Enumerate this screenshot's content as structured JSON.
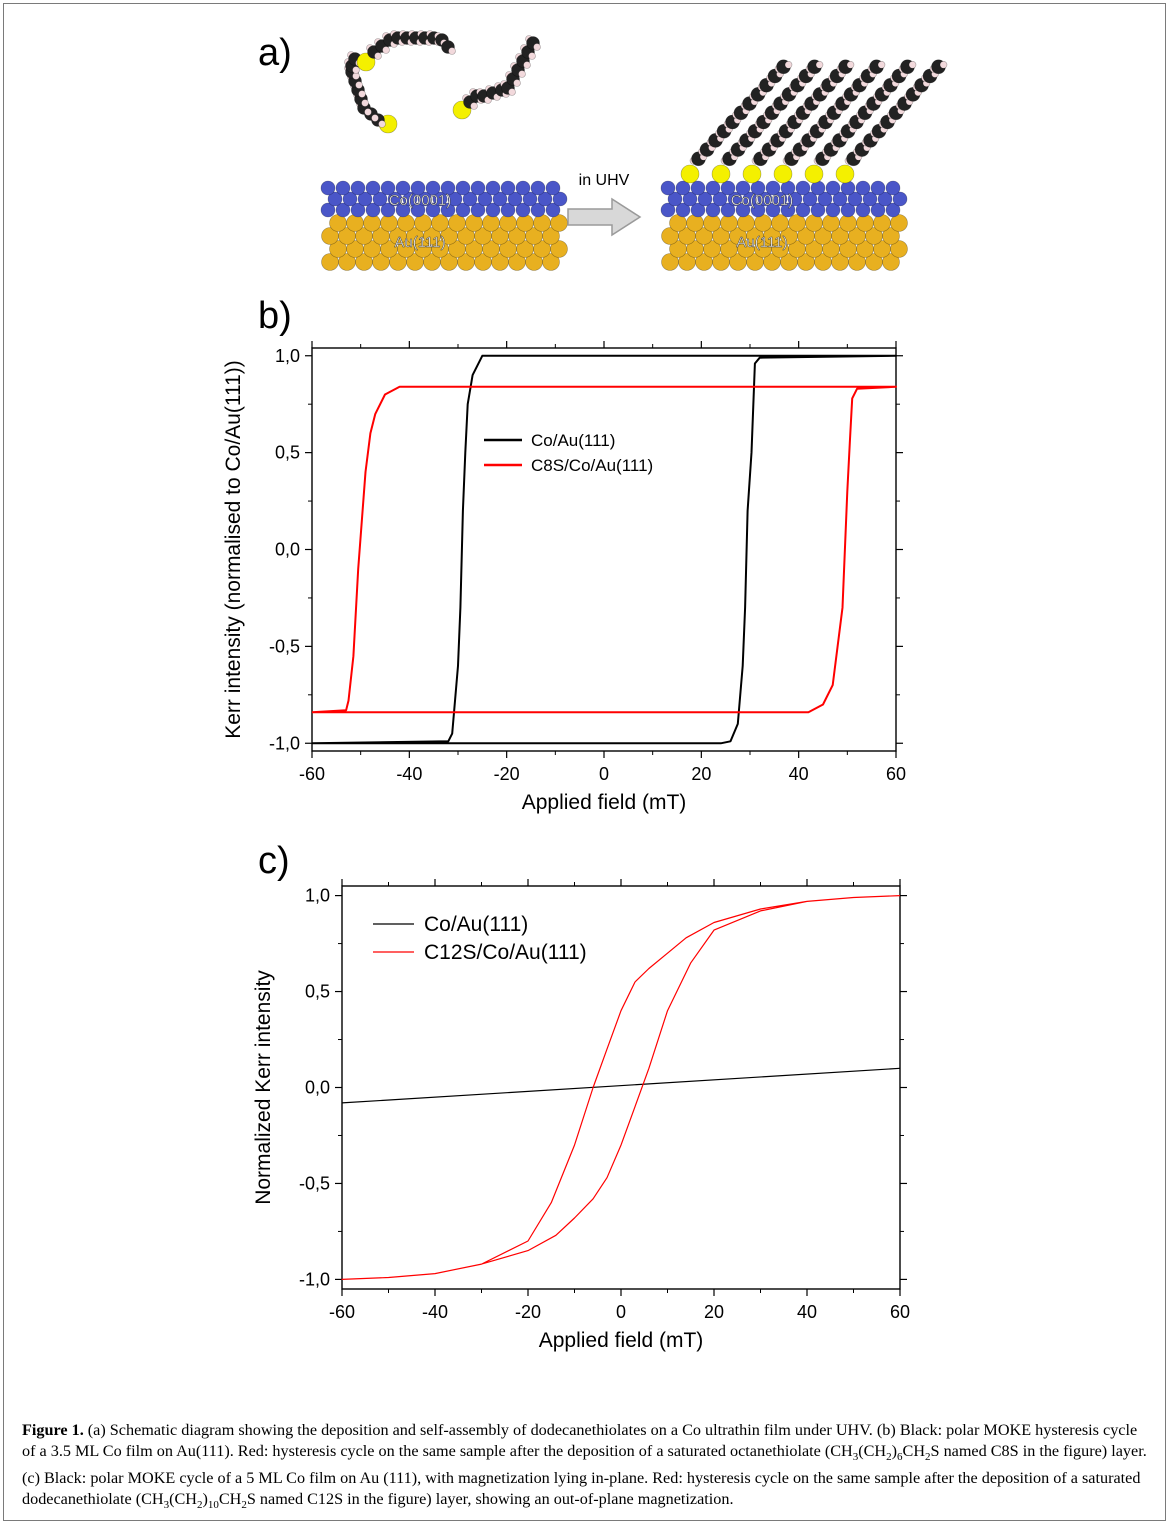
{
  "panel_labels": {
    "a": "a)",
    "b": "b)",
    "c": "c)"
  },
  "schematic": {
    "arrow_label": "in UHV",
    "left_co_label": "Co(0001)",
    "left_au_label": "Au(111)",
    "right_co_label": "Co(0001)",
    "right_au_label": "Au(111)",
    "colors": {
      "carbon": "#222222",
      "hydrogen": "#f2d9dc",
      "sulfur": "#f4f000",
      "cobalt": "#4a56c8",
      "gold": "#e8b020"
    }
  },
  "chart_data": [
    {
      "panel": "b",
      "type": "line",
      "xlabel": "Applied field (mT)",
      "ylabel": "Kerr intensity (normalised to Co/Au(111))",
      "xlim": [
        -60,
        60
      ],
      "ylim": [
        -1.04,
        1.04
      ],
      "xticks": [
        -60,
        -40,
        -20,
        0,
        20,
        40,
        60
      ],
      "yticks": [
        -1.0,
        -0.5,
        0.0,
        0.5,
        1.0
      ],
      "ytick_labels": [
        "-1,0",
        "-0,5",
        "0,0",
        "0,5",
        "1,0"
      ],
      "legend_position": "upper-center",
      "series": [
        {
          "name": "Co/Au(111)",
          "color": "#000000",
          "x": [
            -60,
            -32,
            -31.2,
            -30,
            -29.5,
            -29,
            -28.5,
            -28,
            -27,
            -25,
            60,
            60,
            32,
            31,
            30.3,
            29.5,
            29,
            28.5,
            27.5,
            26,
            24,
            -60
          ],
          "y": [
            -1.0,
            -0.99,
            -0.95,
            -0.6,
            -0.3,
            0.2,
            0.5,
            0.75,
            0.9,
            1.0,
            1.0,
            1.0,
            0.99,
            0.96,
            0.5,
            0.2,
            -0.3,
            -0.6,
            -0.9,
            -0.99,
            -1.0,
            -1.0
          ]
        },
        {
          "name": "C8S/Co/Au(111)",
          "color": "#ff0000",
          "x": [
            -60,
            -53,
            -52.5,
            -51.5,
            -50.5,
            -49,
            -48,
            -47,
            -45,
            -42,
            -40,
            60,
            60,
            52,
            51,
            50.5,
            50,
            49,
            48,
            47,
            45,
            42,
            -60
          ],
          "y": [
            -0.84,
            -0.83,
            -0.78,
            -0.55,
            -0.1,
            0.4,
            0.6,
            0.7,
            0.8,
            0.84,
            0.84,
            0.84,
            0.84,
            0.83,
            0.78,
            0.55,
            0.3,
            -0.3,
            -0.5,
            -0.7,
            -0.8,
            -0.84,
            -0.84
          ]
        }
      ]
    },
    {
      "panel": "c",
      "type": "line",
      "xlabel": "Applied field (mT)",
      "ylabel": "Normalized Kerr intensity",
      "xlim": [
        -60,
        60
      ],
      "ylim": [
        -1.05,
        1.05
      ],
      "xticks": [
        -60,
        -40,
        -20,
        0,
        20,
        40,
        60
      ],
      "yticks": [
        -1.0,
        -0.5,
        0.0,
        0.5,
        1.0
      ],
      "ytick_labels": [
        "-1,0",
        "-0,5",
        "0,0",
        "0,5",
        "1,0"
      ],
      "legend_position": "upper-left",
      "series": [
        {
          "name": "Co/Au(111)",
          "color": "#000000",
          "x": [
            -60,
            60
          ],
          "y": [
            -0.08,
            0.1
          ]
        },
        {
          "name": "C12S/Co/Au(111)",
          "color": "#ff0000",
          "x": [
            60,
            50,
            40,
            30,
            20,
            14,
            10,
            6,
            3,
            0,
            -3,
            -6,
            -10,
            -15,
            -20,
            -30,
            -40,
            -50,
            -60,
            -50,
            -40,
            -30,
            -20,
            -14,
            -10,
            -6,
            -3,
            0,
            3,
            6,
            10,
            15,
            20,
            30,
            40,
            50,
            60
          ],
          "y": [
            1.0,
            0.99,
            0.97,
            0.93,
            0.86,
            0.78,
            0.7,
            0.62,
            0.55,
            0.4,
            0.2,
            0.0,
            -0.3,
            -0.6,
            -0.8,
            -0.92,
            -0.97,
            -0.99,
            -1.0,
            -0.99,
            -0.97,
            -0.92,
            -0.85,
            -0.77,
            -0.68,
            -0.58,
            -0.47,
            -0.3,
            -0.1,
            0.1,
            0.4,
            0.65,
            0.82,
            0.92,
            0.97,
            0.99,
            1.0
          ]
        }
      ]
    }
  ],
  "caption": {
    "figure_label": "Figure 1.",
    "segments": [
      " (a) Schematic diagram showing the deposition and self-assembly of dodecanethiolates on a Co ultrathin film under UHV. (b) Black: polar MOKE hysteresis cycle of a 3.5 ML Co film on Au(111). Red: hysteresis cycle on the same sample after the deposition of a saturated octanethiolate (CH",
      "3",
      "(CH",
      "2",
      ")",
      "6",
      "CH",
      "2",
      "S named C8S in the figure) layer. (c) Black: polar MOKE cycle of a 5 ML Co film on Au (111), with magnetization lying in-plane. Red: hysteresis cycle on the same sample after the deposition of a saturated dodecanethiolate (CH",
      "3",
      "(CH",
      "2",
      ")",
      "10",
      "CH",
      "2",
      "S named C12S in the figure) layer, showing an out-of-plane magnetization."
    ]
  }
}
